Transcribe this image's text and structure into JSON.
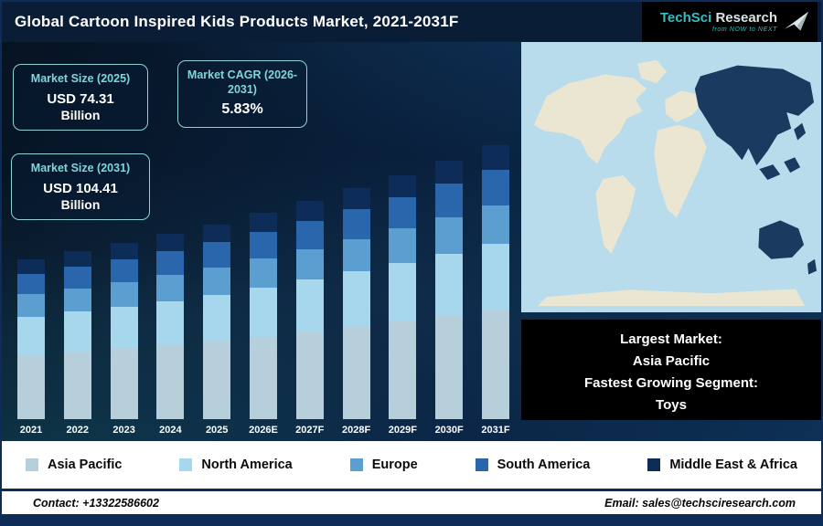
{
  "header": {
    "title": "Global Cartoon Inspired Kids Products Market, 2021-2031F",
    "logo": {
      "brand_primary": "TechSci",
      "brand_secondary": "Research",
      "tagline": "from NOW to NEXT"
    }
  },
  "stats": [
    {
      "label": "Market Size (2025)",
      "value": "USD 74.31",
      "unit": "Billion"
    },
    {
      "label": "Market CAGR (2026-2031)",
      "value": "5.83%",
      "unit": ""
    },
    {
      "label": "Market Size (2031)",
      "value": "USD 104.41",
      "unit": "Billion"
    }
  ],
  "chart_data": {
    "type": "bar",
    "stacked": true,
    "title": "Global Cartoon Inspired Kids Products Market, 2021-2031F",
    "unit": "USD Billion",
    "categories": [
      "2021",
      "2022",
      "2023",
      "2024",
      "2025",
      "2026E",
      "2027F",
      "2028F",
      "2029F",
      "2030F",
      "2031F"
    ],
    "series": [
      {
        "name": "Asia Pacific",
        "color": "#b7cfdb",
        "values": [
          24.4,
          25.6,
          26.9,
          28.2,
          29.7,
          31.4,
          33.3,
          35.2,
          37.3,
          39.5,
          41.8
        ]
      },
      {
        "name": "North America",
        "color": "#a6d7ec",
        "values": [
          14.6,
          15.4,
          16.1,
          16.9,
          17.8,
          18.9,
          20.0,
          21.1,
          22.4,
          23.7,
          25.1
        ]
      },
      {
        "name": "Europe",
        "color": "#5b9fd1",
        "values": [
          8.6,
          9.0,
          9.4,
          9.9,
          10.4,
          11.0,
          11.6,
          12.3,
          13.0,
          13.8,
          14.6
        ]
      },
      {
        "name": "South America",
        "color": "#2a66ab",
        "values": [
          7.9,
          8.3,
          8.7,
          9.2,
          9.7,
          10.2,
          10.8,
          11.5,
          12.1,
          12.8,
          13.6
        ]
      },
      {
        "name": "Middle East & Africa",
        "color": "#0e2c58",
        "values": [
          5.5,
          5.7,
          6.1,
          6.4,
          6.7,
          7.1,
          7.5,
          8.0,
          8.4,
          8.9,
          9.4
        ]
      }
    ],
    "totals": [
      61.0,
      64.0,
      67.2,
      70.6,
      74.31,
      78.6,
      83.2,
      88.1,
      93.2,
      98.7,
      104.41
    ],
    "annotations": [
      "Market Size (2025): USD 74.31 Billion",
      "Market CAGR (2026-2031): 5.83%",
      "Market Size (2031): USD 104.41 Billion"
    ],
    "ylim": [
      0,
      110
    ],
    "grid": false,
    "legend_position": "bottom"
  },
  "map_callout": {
    "lines": [
      "Largest Market:",
      "Asia Pacific",
      "Fastest Growing Segment:",
      "Toys"
    ]
  },
  "footer": {
    "contact": "Contact: +13322586602",
    "email": "Email: sales@techsciresearch.com"
  },
  "colors": {
    "header_bg": "#0a1d36",
    "accent_teal": "#7fd6da",
    "map_ocean": "#b9dcec",
    "map_land": "#eae6d1",
    "map_highlight": "#1a3a5f",
    "callout_bg": "#000000",
    "footer_bar": "#0e2c58",
    "logo_bg": "#000000",
    "logo_teal": "#2fbfc4"
  }
}
